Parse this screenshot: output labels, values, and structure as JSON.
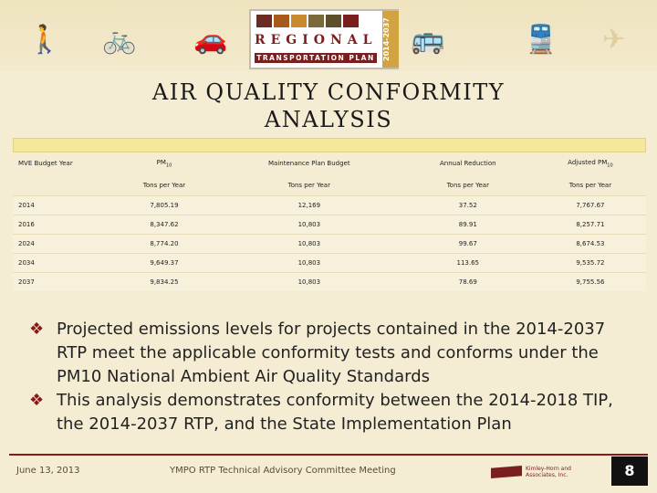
{
  "banner": {
    "icons": [
      "pedestrian-icon",
      "bicycle-icon",
      "car-icon",
      "bus-icon",
      "train-icon",
      "airplane-icon"
    ],
    "logo_main": "REGIONAL",
    "logo_sub": "TRANSPORTATION PLAN",
    "logo_years": "2014-2037",
    "logo_colors": [
      "#6a2b25",
      "#a85a1b",
      "#c9892c",
      "#7a6a3a",
      "#5e4f2a",
      "#7a1f1f"
    ]
  },
  "title": "AIR QUALITY CONFORMITY ANALYSIS",
  "table": {
    "headers": [
      "MVE Budget Year",
      "PM10",
      "Maintenance Plan Budget",
      "Annual Reduction",
      "Adjusted PM10"
    ],
    "units": [
      "",
      "Tons per Year",
      "Tons per Year",
      "Tons per Year",
      "Tons per Year"
    ],
    "rows": [
      [
        "2014",
        "7,805.19",
        "12,169",
        "37.52",
        "7,767.67"
      ],
      [
        "2016",
        "8,347.62",
        "10,803",
        "89.91",
        "8,257.71"
      ],
      [
        "2024",
        "8,774.20",
        "10,803",
        "99.67",
        "8,674.53"
      ],
      [
        "2034",
        "9,649.37",
        "10,803",
        "113.65",
        "9,535.72"
      ],
      [
        "2037",
        "9,834.25",
        "10,803",
        "78.69",
        "9,755.56"
      ]
    ]
  },
  "bullets": [
    "Projected emissions levels for projects contained in the 2014-2037 RTP meet the applicable conformity tests and conforms under the PM10 National Ambient Air Quality Standards",
    "This analysis demonstrates conformity between the 2014-2018 TIP, the 2014-2037 RTP, and the State Implementation Plan"
  ],
  "footer": {
    "date": "June 13, 2013",
    "meeting": "YMPO RTP Technical Advisory Committee Meeting",
    "company": "Kimley-Horn and Associates, Inc.",
    "page": "8"
  },
  "colors": {
    "background": "#f4ecd3",
    "accent": "#8a1a1a",
    "header_bar": "#f6e89a"
  }
}
